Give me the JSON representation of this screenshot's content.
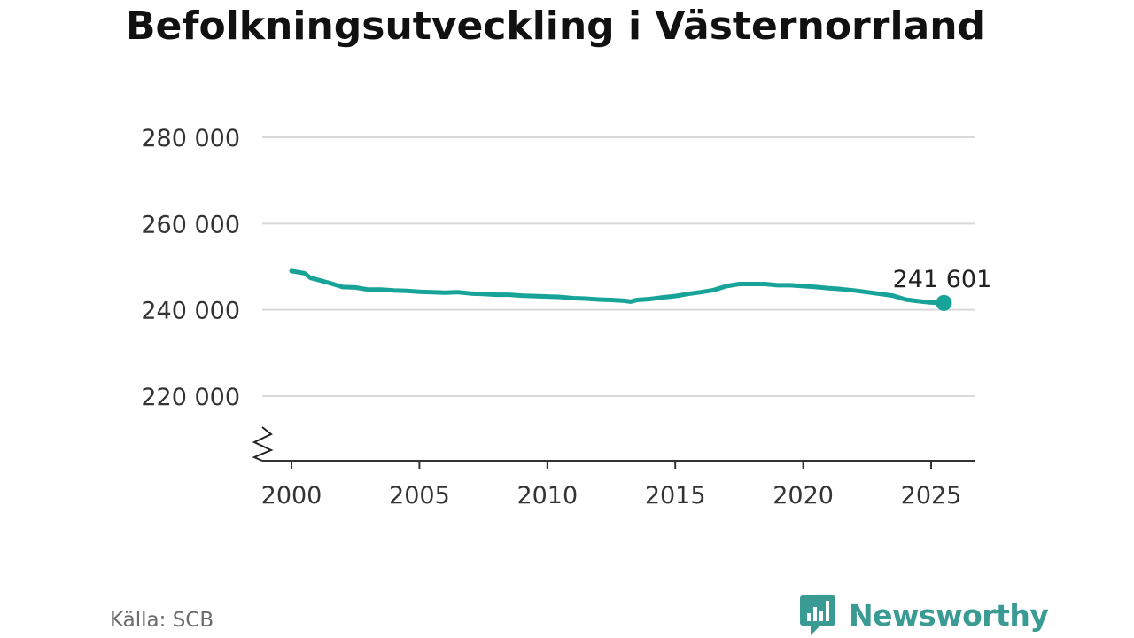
{
  "title": "Befolkningsutveckling i Västernorrland",
  "source": "Källa: SCB",
  "brand": {
    "name": "Newsworthy",
    "icon": "bar-chart-speech-bubble-icon",
    "color": "#3a9b95"
  },
  "chart_data": {
    "type": "line",
    "title": "Befolkningsutveckling i Västernorrland",
    "xlabel": "",
    "ylabel": "",
    "xlim": [
      1999,
      2026.7
    ],
    "ylim": [
      205000,
      280000
    ],
    "y_axis_break": true,
    "grid": "horizontal",
    "line_color": "#17a398",
    "x_ticks": [
      2000,
      2005,
      2010,
      2015,
      2020,
      2025
    ],
    "x_tick_labels": [
      "2000",
      "2005",
      "2010",
      "2015",
      "2020",
      "2025"
    ],
    "y_ticks": [
      220000,
      240000,
      260000,
      280000
    ],
    "y_tick_labels": [
      "220 000",
      "240 000",
      "260 000",
      "280 000"
    ],
    "end_label": "241 601",
    "series": [
      {
        "x": [
          2000.0,
          2000.5,
          2000.75,
          2001.0,
          2001.5,
          2002.0,
          2002.5,
          2003.0,
          2003.5,
          2004.0,
          2004.5,
          2005.0,
          2005.5,
          2006.0,
          2006.5,
          2007.0,
          2007.5,
          2008.0,
          2008.5,
          2009.0,
          2009.5,
          2010.0,
          2010.5,
          2011.0,
          2011.5,
          2012.0,
          2012.5,
          2013.0,
          2013.25,
          2013.5,
          2014.0,
          2014.5,
          2015.0,
          2015.5,
          2016.0,
          2016.5,
          2017.0,
          2017.5,
          2018.0,
          2018.5,
          2019.0,
          2019.5,
          2020.0,
          2020.5,
          2021.0,
          2021.5,
          2022.0,
          2022.5,
          2023.0,
          2023.5,
          2024.0,
          2024.5,
          2025.0,
          2025.5
        ],
        "y": [
          249000,
          248500,
          247400,
          247000,
          246200,
          245300,
          245200,
          244700,
          244700,
          244500,
          244400,
          244200,
          244100,
          244000,
          244100,
          243800,
          243700,
          243500,
          243500,
          243300,
          243200,
          243100,
          243000,
          242700,
          242600,
          242400,
          242300,
          242100,
          241900,
          242300,
          242500,
          242900,
          243200,
          243700,
          244100,
          244600,
          245500,
          246000,
          246000,
          246000,
          245700,
          245700,
          245500,
          245300,
          245000,
          244800,
          244500,
          244100,
          243700,
          243300,
          242400,
          242000,
          241700,
          241601
        ]
      }
    ]
  }
}
